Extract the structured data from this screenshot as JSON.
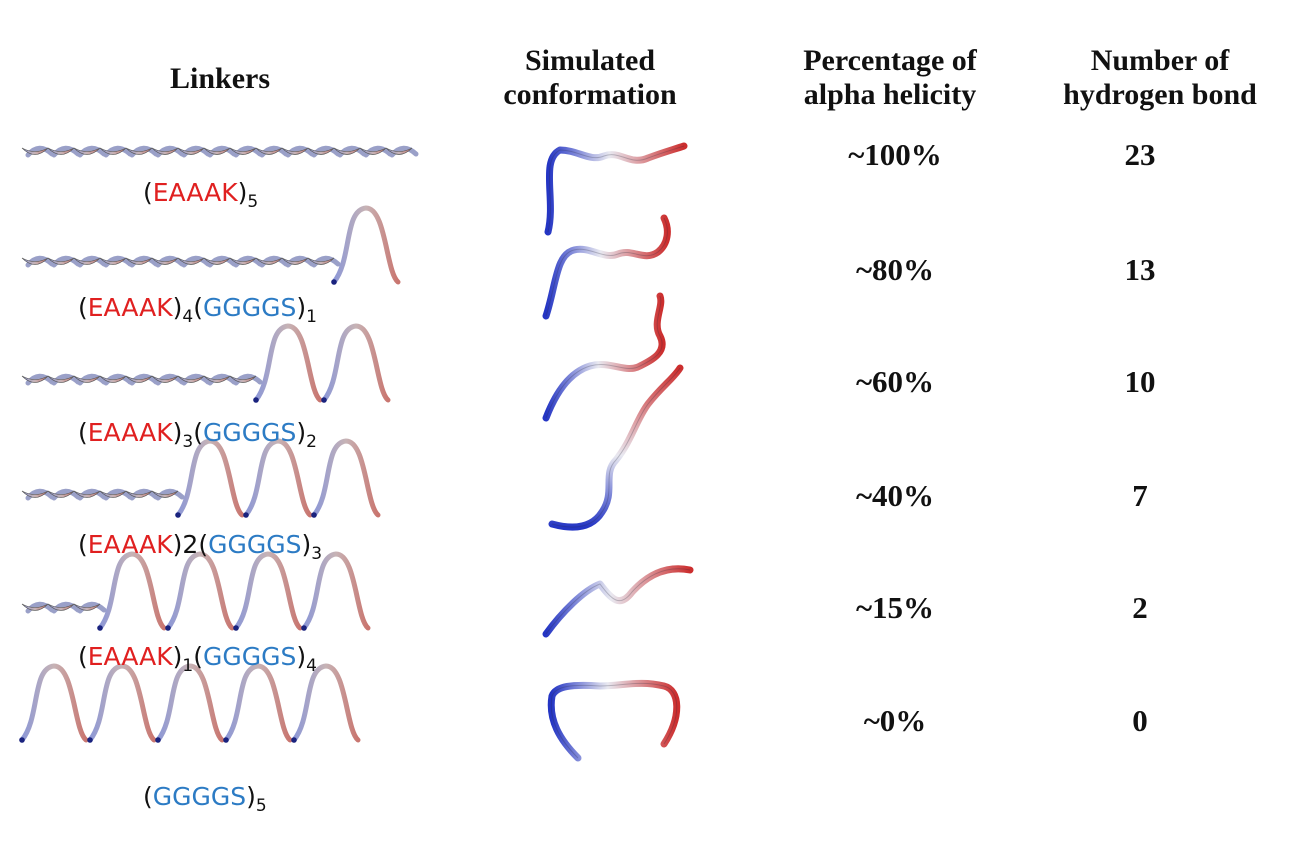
{
  "headers": {
    "linkers": "Linkers",
    "simulated": [
      "Simulated",
      "conformation"
    ],
    "percentage": [
      "Percentage of",
      "alpha helicity"
    ],
    "hbond": [
      "Number of",
      "hydrogen bond"
    ]
  },
  "colors": {
    "eaaak": "#e02020",
    "gggs": "#2c7bc4",
    "text": "#111111",
    "helix_blue": "#2b3fc2",
    "helix_red": "#c7353a"
  },
  "rows": [
    {
      "tokens": [
        {
          "t": "(",
          "c": "text"
        },
        {
          "t": "EAAAK",
          "c": "eaaak"
        },
        {
          "t": ")",
          "c": "text"
        },
        {
          "t": "5",
          "c": "text",
          "sub": true
        }
      ],
      "helicity": "~100%",
      "hbonds": "23",
      "helix_fraction": 1.0
    },
    {
      "tokens": [
        {
          "t": "(",
          "c": "text"
        },
        {
          "t": "EAAAK",
          "c": "eaaak"
        },
        {
          "t": ")",
          "c": "text"
        },
        {
          "t": "4",
          "c": "text",
          "sub": true
        },
        {
          "t": "(",
          "c": "text"
        },
        {
          "t": "GGGGS",
          "c": "gggs"
        },
        {
          "t": ")",
          "c": "text"
        },
        {
          "t": "1",
          "c": "text",
          "sub": true
        }
      ],
      "helicity": "~80%",
      "hbonds": "13",
      "helix_fraction": 0.8
    },
    {
      "tokens": [
        {
          "t": "(",
          "c": "text"
        },
        {
          "t": "EAAAK",
          "c": "eaaak"
        },
        {
          "t": ")",
          "c": "text"
        },
        {
          "t": "3",
          "c": "text",
          "sub": true
        },
        {
          "t": "(",
          "c": "text"
        },
        {
          "t": "GGGGS",
          "c": "gggs"
        },
        {
          "t": ")",
          "c": "text"
        },
        {
          "t": "2",
          "c": "text",
          "sub": true
        }
      ],
      "helicity": "~60%",
      "hbonds": "10",
      "helix_fraction": 0.6
    },
    {
      "tokens": [
        {
          "t": "(",
          "c": "text"
        },
        {
          "t": "EAAAK",
          "c": "eaaak"
        },
        {
          "t": ")2(",
          "c": "text"
        },
        {
          "t": "GGGGS",
          "c": "gggs"
        },
        {
          "t": ")",
          "c": "text"
        },
        {
          "t": "3",
          "c": "text",
          "sub": true
        }
      ],
      "helicity": "~40%",
      "hbonds": "7",
      "helix_fraction": 0.4
    },
    {
      "tokens": [
        {
          "t": "(",
          "c": "text"
        },
        {
          "t": "EAAAK",
          "c": "eaaak"
        },
        {
          "t": ")",
          "c": "text"
        },
        {
          "t": "1",
          "c": "text",
          "sub": true
        },
        {
          "t": "(",
          "c": "text"
        },
        {
          "t": "GGGGS",
          "c": "gggs"
        },
        {
          "t": ")",
          "c": "text"
        },
        {
          "t": "4",
          "c": "text",
          "sub": true
        }
      ],
      "helicity": "~15%",
      "hbonds": "2",
      "helix_fraction": 0.2
    },
    {
      "tokens": [
        {
          "t": "(",
          "c": "text"
        },
        {
          "t": "GGGGS",
          "c": "gggs"
        },
        {
          "t": ")",
          "c": "text"
        },
        {
          "t": "5",
          "c": "text",
          "sub": true
        }
      ],
      "helicity": "~0%",
      "hbonds": "0",
      "helix_fraction": 0.0
    }
  ]
}
